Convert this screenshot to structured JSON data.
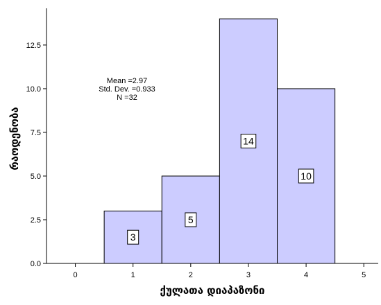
{
  "chart_data": {
    "type": "bar",
    "title": "",
    "xlabel": "ქულათა დიაპაზონი",
    "ylabel": "რაოდენობა",
    "bins": [
      {
        "x": 1,
        "value": 3,
        "label": "3"
      },
      {
        "x": 2,
        "value": 5,
        "label": "5"
      },
      {
        "x": 3,
        "value": 14,
        "label": "14"
      },
      {
        "x": 4,
        "value": 10,
        "label": "10"
      }
    ],
    "bin_width": 1,
    "xlim": [
      -0.5,
      5.25
    ],
    "ylim": [
      0,
      14.6
    ],
    "xticks": [
      {
        "value": 0,
        "label": "0"
      },
      {
        "value": 1,
        "label": "1"
      },
      {
        "value": 2,
        "label": "2"
      },
      {
        "value": 3,
        "label": "3"
      },
      {
        "value": 4,
        "label": "4"
      },
      {
        "value": 5,
        "label": "5"
      }
    ],
    "yticks": [
      {
        "value": 0,
        "label": "0.0"
      },
      {
        "value": 2.5,
        "label": "2.5"
      },
      {
        "value": 5,
        "label": "5.0"
      },
      {
        "value": 7.5,
        "label": "7.5"
      },
      {
        "value": 10,
        "label": "10.0"
      },
      {
        "value": 12.5,
        "label": "12.5"
      }
    ],
    "stats": [
      "Mean =2.97",
      "Std. Dev. =0.933",
      "N =32"
    ],
    "bar_color": "#ccccff",
    "bar_edge_color": "#000000",
    "grid": false
  }
}
